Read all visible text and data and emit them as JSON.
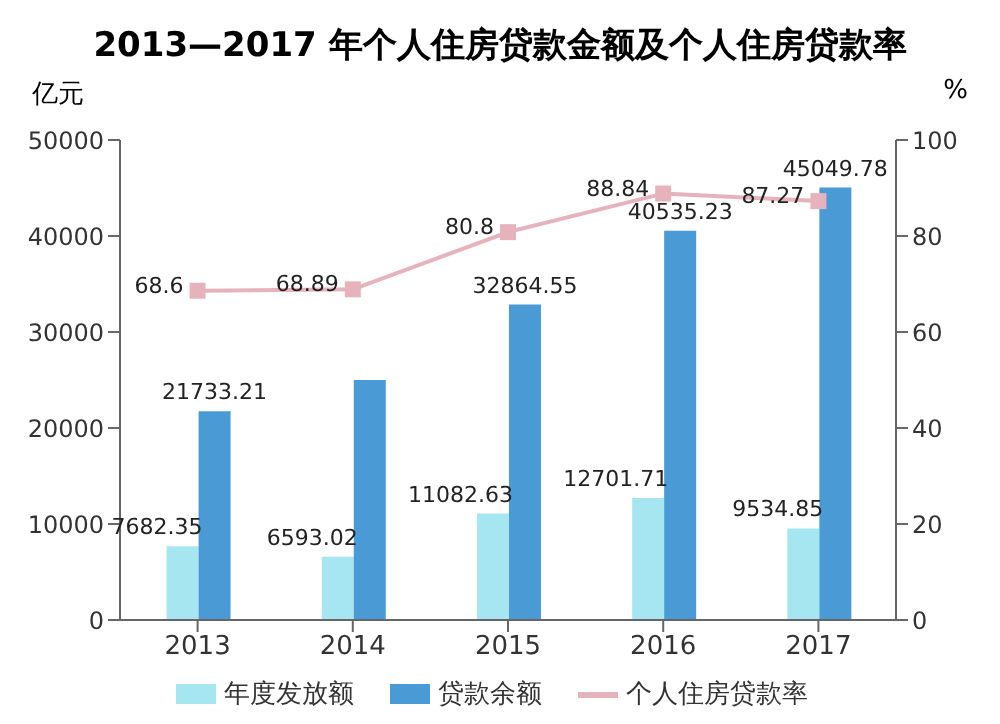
{
  "chart_data": {
    "type": "bar",
    "title": "2013—2017 年个人住房贷款金额及个人住房贷款率",
    "ylabel": "亿元",
    "y2label": "%",
    "categories": [
      "2013",
      "2014",
      "2015",
      "2016",
      "2017"
    ],
    "series": [
      {
        "name": "年度发放额",
        "color": "#a6e6f0",
        "values": [
          7682.35,
          6593.02,
          11082.63,
          12701.71,
          9534.85
        ],
        "value_labels": [
          "7682.35",
          "6593.02",
          "11082.63",
          "12701.71",
          "9534.85"
        ]
      },
      {
        "name": "贷款余额",
        "color": "#4a9bd5",
        "values": [
          21733.21,
          25000,
          32864.55,
          40535.23,
          45049.78
        ],
        "value_labels": [
          "21733.21",
          null,
          "32864.55",
          "40535.23",
          "45049.78"
        ]
      },
      {
        "name": "个人住房贷款率",
        "type": "line",
        "axis": "y2",
        "color": "#e6b3bd",
        "marker": "square",
        "values": [
          68.6,
          68.89,
          80.8,
          88.84,
          87.27
        ],
        "value_labels": [
          "68.6",
          "68.89",
          "80.8",
          "88.84",
          "87.27"
        ]
      }
    ],
    "ylim": [
      0,
      50000
    ],
    "yticks": [
      0,
      10000,
      20000,
      30000,
      40000,
      50000
    ],
    "y2lim": [
      0,
      100
    ],
    "y2ticks": [
      0,
      20,
      40,
      60,
      80,
      100
    ],
    "legend": "bottom"
  }
}
